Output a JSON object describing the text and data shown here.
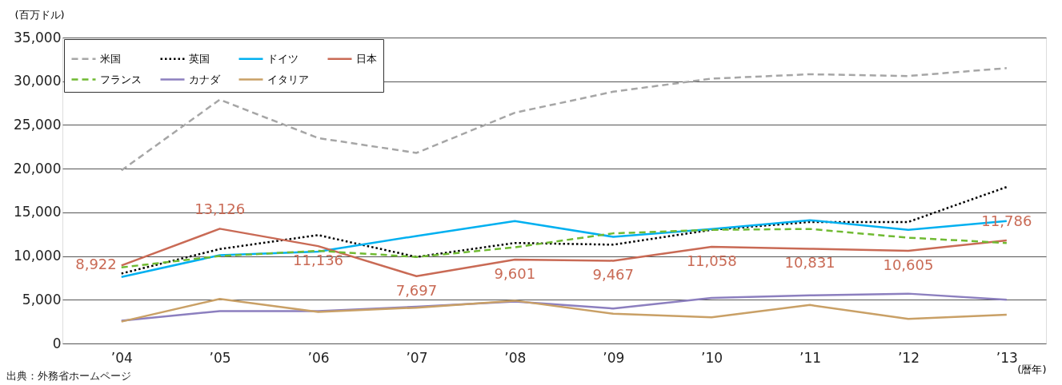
{
  "chart_data": {
    "type": "line",
    "ylabel": "(百万ドル)",
    "xlabel": "(暦年)",
    "categories": [
      "’04",
      "’05",
      "’06",
      "’07",
      "’08",
      "’09",
      "’10",
      "’11",
      "’12",
      "’13"
    ],
    "ylim": [
      0,
      35000
    ],
    "yticks": [
      {
        "value": 0,
        "label": "0"
      },
      {
        "value": 5000,
        "label": "5,000"
      },
      {
        "value": 10000,
        "label": "10,000"
      },
      {
        "value": 15000,
        "label": "15,000"
      },
      {
        "value": 20000,
        "label": "20,000"
      },
      {
        "value": 25000,
        "label": "25,000"
      },
      {
        "value": 30000,
        "label": "30,000"
      },
      {
        "value": 35000,
        "label": "35,000"
      }
    ],
    "grid": "y",
    "legend": "top left",
    "marker": "none",
    "series": [
      {
        "name": "米国",
        "color": "#a6a6a6",
        "line_style": "dashed",
        "values": [
          19800,
          27900,
          23500,
          21800,
          26400,
          28800,
          30300,
          30800,
          30600,
          31500
        ]
      },
      {
        "name": "英国",
        "color": "#000000",
        "line_style": "dotted",
        "values": [
          8000,
          10800,
          12400,
          9900,
          11500,
          11300,
          13000,
          13900,
          13900,
          17900
        ]
      },
      {
        "name": "ドイツ",
        "color": "#00b0f0",
        "line_style": "solid",
        "values": [
          7600,
          10100,
          10500,
          12300,
          14000,
          12200,
          13100,
          14100,
          13000,
          14000
        ]
      },
      {
        "name": "日本",
        "color": "#c96a55",
        "line_style": "solid",
        "values": [
          8922,
          13126,
          11136,
          7697,
          9601,
          9467,
          11058,
          10831,
          10605,
          11786
        ],
        "value_labels": [
          "8,922",
          "13,126",
          "11,136",
          "7,697",
          "9,601",
          "9,467",
          "11,058",
          "10,831",
          "10,605",
          "11,786"
        ]
      },
      {
        "name": "フランス",
        "color": "#70ba32",
        "line_style": "dashed",
        "values": [
          8700,
          10000,
          10600,
          9900,
          11000,
          12600,
          13000,
          13100,
          12100,
          11500
        ]
      },
      {
        "name": "カナダ",
        "color": "#8c7fbf",
        "line_style": "solid",
        "values": [
          2600,
          3700,
          3700,
          4200,
          4800,
          4000,
          5200,
          5500,
          5700,
          5000
        ]
      },
      {
        "name": "イタリア",
        "color": "#c9a066",
        "line_style": "solid",
        "values": [
          2500,
          5100,
          3600,
          4100,
          4900,
          3400,
          3000,
          4400,
          2800,
          3300
        ]
      }
    ],
    "annotations": [
      "出典：外務省ホームページ"
    ]
  }
}
